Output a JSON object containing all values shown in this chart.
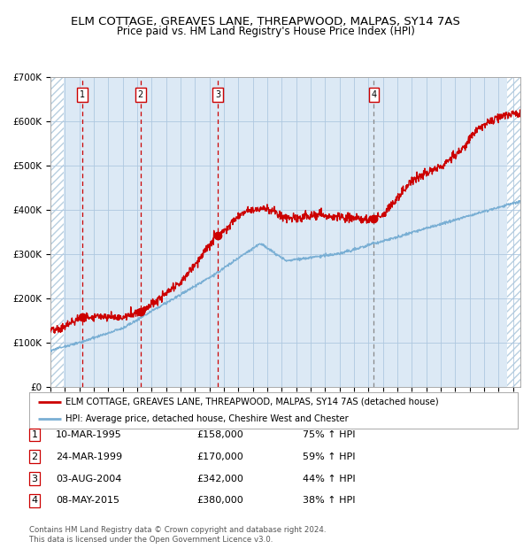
{
  "title": "ELM COTTAGE, GREAVES LANE, THREAPWOOD, MALPAS, SY14 7AS",
  "subtitle": "Price paid vs. HM Land Registry's House Price Index (HPI)",
  "ylabel_ticks": [
    "£0",
    "£100K",
    "£200K",
    "£300K",
    "£400K",
    "£500K",
    "£600K",
    "£700K"
  ],
  "ylim": [
    0,
    700000
  ],
  "xlim_start": 1993.0,
  "xlim_end": 2025.5,
  "background_color": "#dce9f5",
  "hatch_color": "#b8cfe0",
  "grid_color": "#aec8e0",
  "red_line_color": "#cc0000",
  "blue_line_color": "#7aafd4",
  "sale_dates": [
    1995.19,
    1999.23,
    2004.58,
    2015.36
  ],
  "sale_prices": [
    158000,
    170000,
    342000,
    380000
  ],
  "sale_labels": [
    "1",
    "2",
    "3",
    "4"
  ],
  "legend_red": "ELM COTTAGE, GREAVES LANE, THREAPWOOD, MALPAS, SY14 7AS (detached house)",
  "legend_blue": "HPI: Average price, detached house, Cheshire West and Chester",
  "table_rows": [
    [
      "1",
      "10-MAR-1995",
      "£158,000",
      "75% ↑ HPI"
    ],
    [
      "2",
      "24-MAR-1999",
      "£170,000",
      "59% ↑ HPI"
    ],
    [
      "3",
      "03-AUG-2004",
      "£342,000",
      "44% ↑ HPI"
    ],
    [
      "4",
      "08-MAY-2015",
      "£380,000",
      "38% ↑ HPI"
    ]
  ],
  "footer": "Contains HM Land Registry data © Crown copyright and database right 2024.\nThis data is licensed under the Open Government Licence v3.0.",
  "title_fontsize": 9.5,
  "subtitle_fontsize": 8.5,
  "tick_fontsize": 7.5,
  "legend_fontsize": 7.5,
  "table_fontsize": 8
}
